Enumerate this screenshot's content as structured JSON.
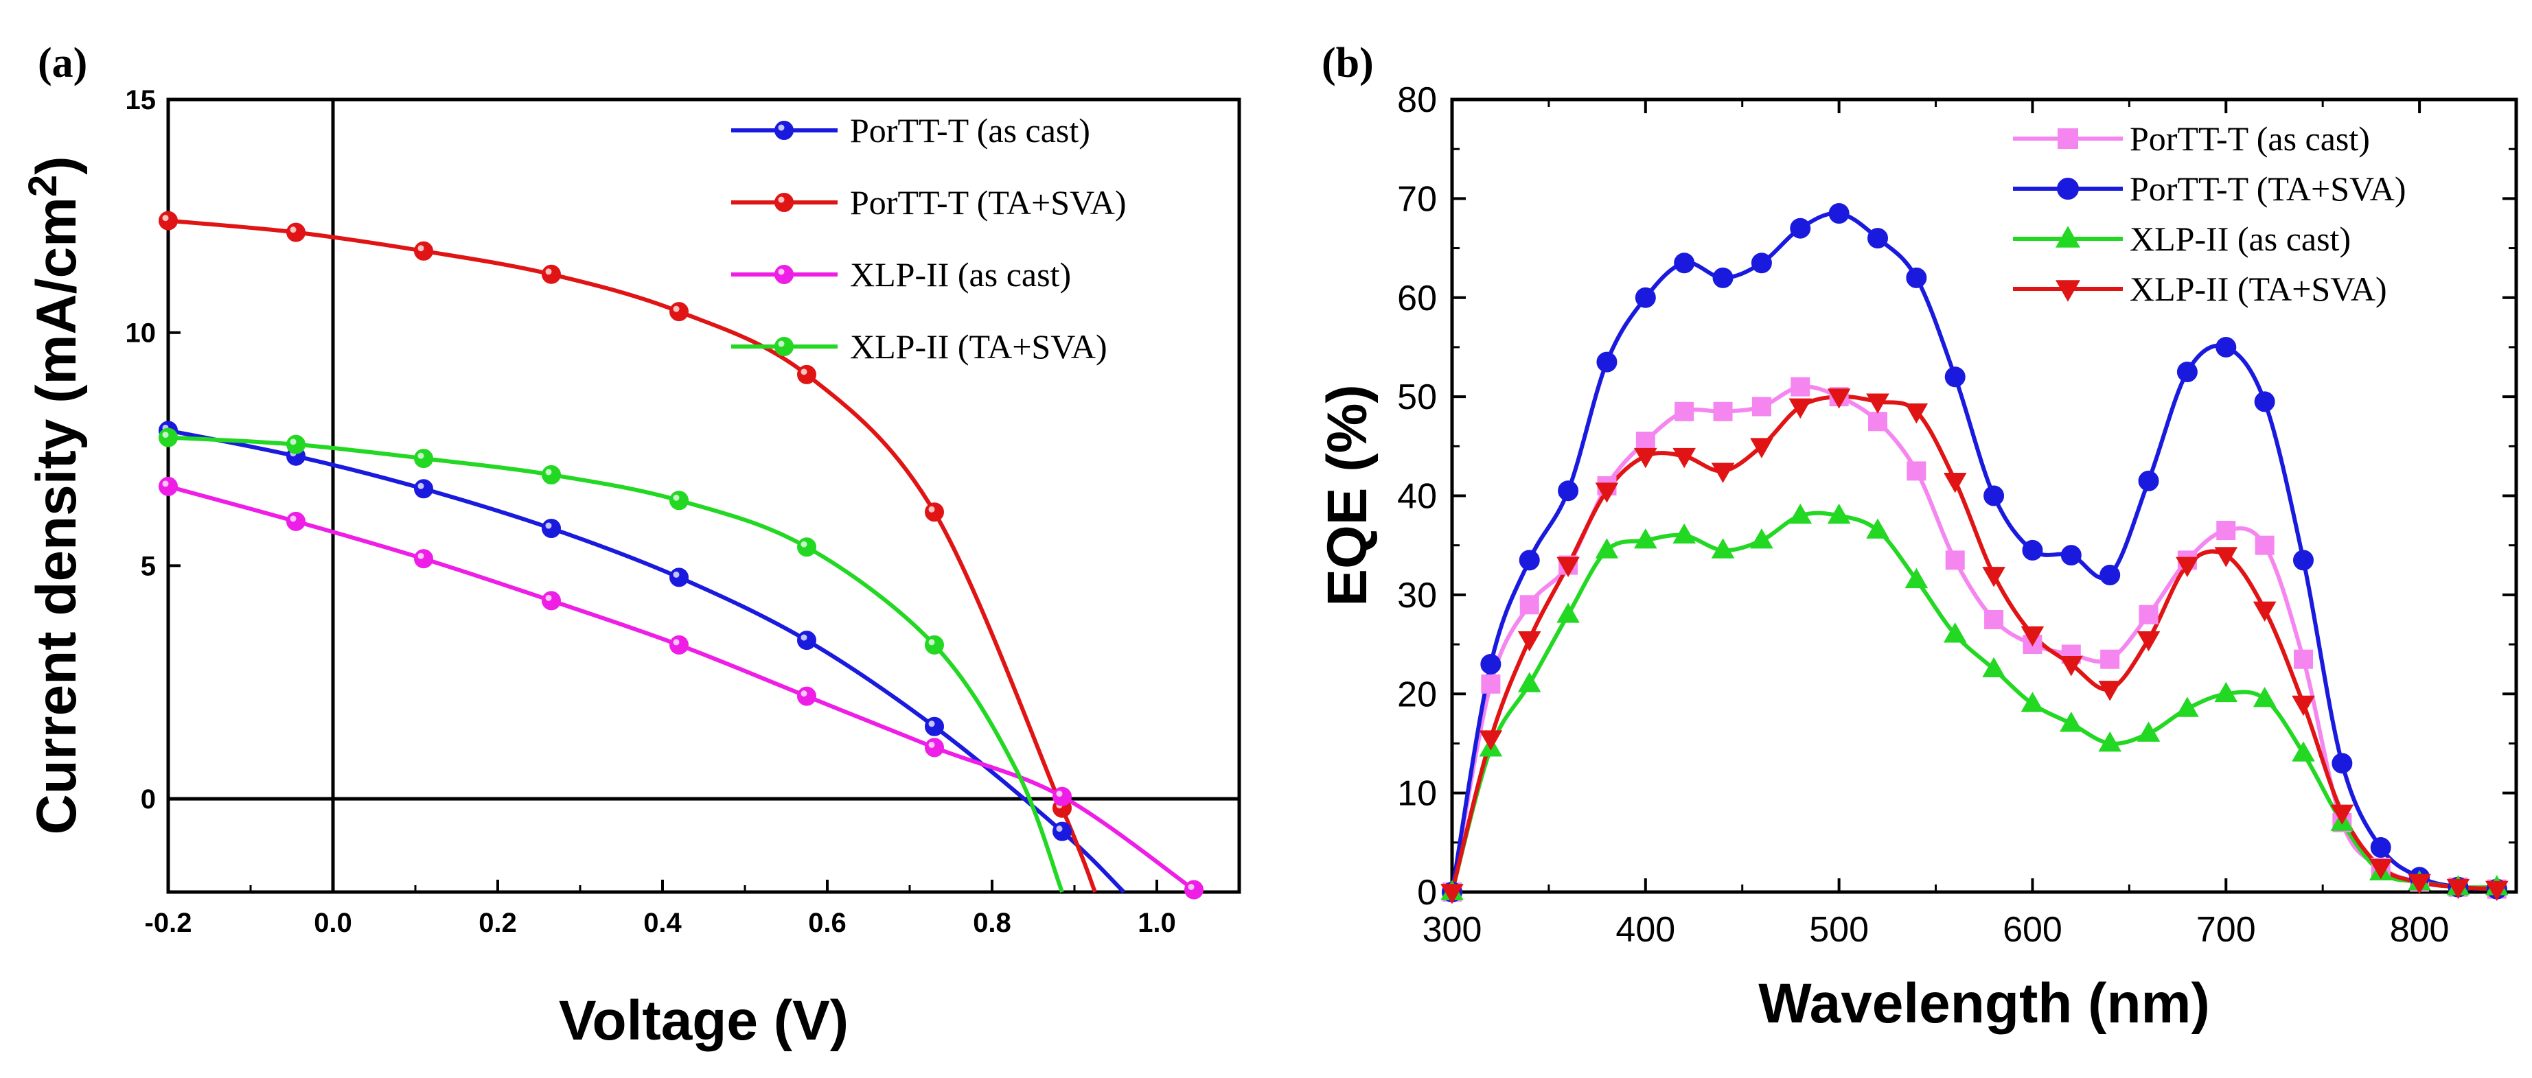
{
  "chart_data": [
    {
      "panel": "(a)",
      "type": "line",
      "xlabel": "Voltage (V)",
      "ylabel": "Current density (mA/cm2)",
      "ylabel_main": "Current density (mA/cm",
      "ylabel_sup": "2",
      "ylabel_close": ")",
      "xlim": [
        -0.2,
        1.1
      ],
      "ylim": [
        -2,
        15
      ],
      "xticks": [
        -0.2,
        0.0,
        0.2,
        0.4,
        0.6,
        0.8,
        1.0
      ],
      "xtick_labels": [
        "-0.2",
        "0.0",
        "0.2",
        "0.4",
        "0.6",
        "0.8",
        "1.0"
      ],
      "yticks": [
        0,
        5,
        10,
        15
      ],
      "ytick_labels": [
        "0",
        "5",
        "10",
        "15"
      ],
      "reference_lines": {
        "x": 0,
        "y": 0
      },
      "legend_position": "top-right",
      "series": [
        {
          "name": "PorTT-T (as cast)",
          "color": "#1a1adf",
          "marker": "circle",
          "x": [
            -0.2,
            -0.045,
            0.11,
            0.265,
            0.42,
            0.575,
            0.73,
            0.885,
            0.96
          ],
          "y": [
            7.9,
            7.35,
            6.65,
            5.8,
            4.75,
            3.4,
            1.55,
            -0.7,
            -2.0
          ],
          "marker_indices": [
            0,
            1,
            2,
            3,
            4,
            5,
            6,
            7
          ]
        },
        {
          "name": "PorTT-T (TA+SVA)",
          "color": "#e01414",
          "marker": "circle",
          "x": [
            -0.2,
            -0.045,
            0.11,
            0.265,
            0.42,
            0.575,
            0.73,
            0.885,
            0.925
          ],
          "y": [
            12.4,
            12.15,
            11.75,
            11.25,
            10.45,
            9.1,
            6.15,
            -0.2,
            -2.0
          ],
          "marker_indices": [
            0,
            1,
            2,
            3,
            4,
            5,
            6,
            7
          ]
        },
        {
          "name": "XLP-II (as cast)",
          "color": "#ee1ee6",
          "marker": "circle",
          "x": [
            -0.2,
            -0.045,
            0.11,
            0.265,
            0.42,
            0.575,
            0.73,
            0.885,
            1.045
          ],
          "y": [
            6.7,
            5.95,
            5.15,
            4.25,
            3.3,
            2.2,
            1.1,
            0.05,
            -1.95
          ],
          "marker_indices": [
            0,
            1,
            2,
            3,
            4,
            5,
            6,
            7,
            8
          ]
        },
        {
          "name": "XLP-II (TA+SVA)",
          "color": "#22d822",
          "marker": "circle",
          "x": [
            -0.2,
            -0.045,
            0.11,
            0.265,
            0.42,
            0.575,
            0.73,
            0.83,
            0.885
          ],
          "y": [
            7.75,
            7.6,
            7.3,
            6.95,
            6.4,
            5.4,
            3.3,
            0.6,
            -2.0
          ],
          "marker_indices": [
            0,
            1,
            2,
            3,
            4,
            5,
            6
          ]
        }
      ]
    },
    {
      "panel": "(b)",
      "type": "line",
      "xlabel": "Wavelength (nm)",
      "ylabel": "EQE (%)",
      "xlim": [
        300,
        850
      ],
      "ylim": [
        0,
        80
      ],
      "xticks": [
        300,
        400,
        500,
        600,
        700,
        800
      ],
      "xtick_labels": [
        "300",
        "400",
        "500",
        "600",
        "700",
        "800"
      ],
      "yticks": [
        0,
        10,
        20,
        30,
        40,
        50,
        60,
        70,
        80
      ],
      "ytick_labels": [
        "0",
        "10",
        "20",
        "30",
        "40",
        "50",
        "60",
        "70",
        "80"
      ],
      "legend_position": "top-right",
      "x": [
        300,
        320,
        340,
        360,
        380,
        400,
        420,
        440,
        460,
        480,
        500,
        520,
        540,
        560,
        580,
        600,
        620,
        640,
        660,
        680,
        700,
        720,
        740,
        760,
        780,
        800,
        820,
        840
      ],
      "series": [
        {
          "name": "PorTT-T (as cast)",
          "color": "#f586f0",
          "marker": "square",
          "values": [
            0,
            21,
            29,
            33,
            41,
            45.5,
            48.5,
            48.5,
            49,
            51,
            50,
            47.5,
            42.5,
            33.5,
            27.5,
            25,
            24,
            23.5,
            28,
            33.5,
            36.5,
            35,
            23.5,
            7,
            2.5,
            1,
            0.5,
            0.3
          ]
        },
        {
          "name": "PorTT-T (TA+SVA)",
          "color": "#1a1adf",
          "marker": "circle",
          "values": [
            0,
            23,
            33.5,
            40.5,
            53.5,
            60,
            63.5,
            62,
            63.5,
            67,
            68.5,
            66,
            62,
            52,
            40,
            34.5,
            34,
            32,
            41.5,
            52.5,
            55,
            49.5,
            33.5,
            13,
            4.5,
            1.5,
            0.5,
            0.3
          ]
        },
        {
          "name": "XLP-II (as cast)",
          "color": "#22d822",
          "marker": "triangle-up",
          "values": [
            0,
            14.5,
            21,
            28,
            34.5,
            35.5,
            36,
            34.5,
            35.5,
            38,
            38,
            36.5,
            31.5,
            26,
            22.5,
            19,
            17,
            15,
            16,
            18.5,
            20,
            19.5,
            14,
            7,
            2,
            1,
            0.5,
            0.5
          ]
        },
        {
          "name": "XLP-II (TA+SVA)",
          "color": "#e01414",
          "marker": "triangle-down",
          "values": [
            0,
            15.5,
            25.5,
            33,
            40.5,
            44,
            44,
            42.5,
            45,
            49,
            50,
            49.5,
            48.5,
            41.5,
            32,
            26,
            23,
            20.5,
            25.5,
            33,
            34,
            28.5,
            19,
            8,
            2.5,
            1,
            0.5,
            0.3
          ]
        }
      ]
    }
  ]
}
